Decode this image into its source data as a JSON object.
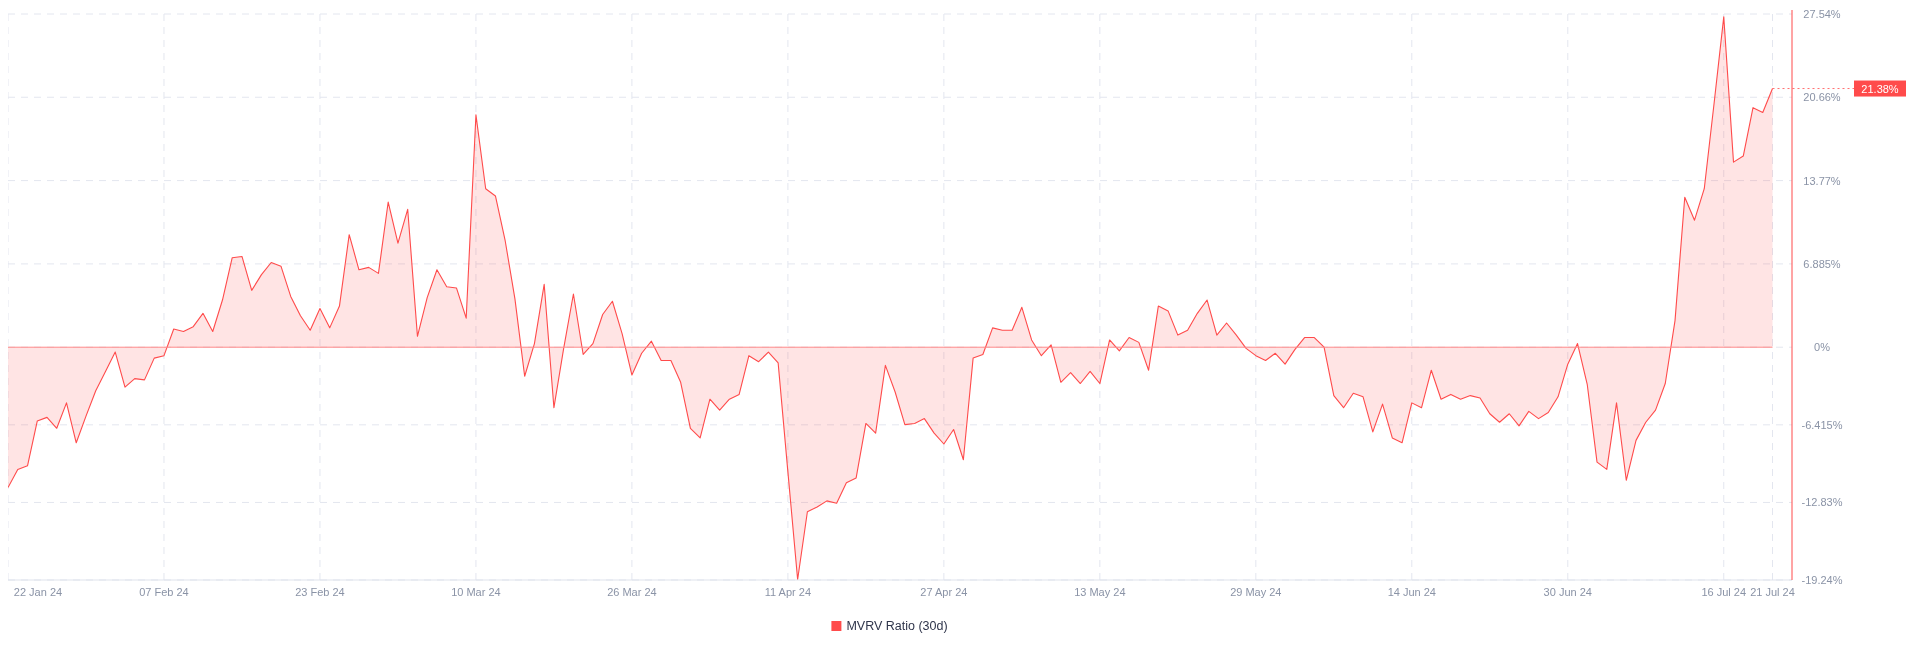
{
  "chart_data": {
    "type": "area",
    "x": [
      "2024-01-22",
      "2024-01-23",
      "2024-01-24",
      "2024-01-25",
      "2024-01-26",
      "2024-01-27",
      "2024-01-28",
      "2024-01-29",
      "2024-01-30",
      "2024-01-31",
      "2024-02-01",
      "2024-02-02",
      "2024-02-03",
      "2024-02-04",
      "2024-02-05",
      "2024-02-06",
      "2024-02-07",
      "2024-02-08",
      "2024-02-09",
      "2024-02-10",
      "2024-02-11",
      "2024-02-12",
      "2024-02-13",
      "2024-02-14",
      "2024-02-15",
      "2024-02-16",
      "2024-02-17",
      "2024-02-18",
      "2024-02-19",
      "2024-02-20",
      "2024-02-21",
      "2024-02-22",
      "2024-02-23",
      "2024-02-24",
      "2024-02-25",
      "2024-02-26",
      "2024-02-27",
      "2024-02-28",
      "2024-02-29",
      "2024-03-01",
      "2024-03-02",
      "2024-03-03",
      "2024-03-04",
      "2024-03-05",
      "2024-03-06",
      "2024-03-07",
      "2024-03-08",
      "2024-03-09",
      "2024-03-10",
      "2024-03-11",
      "2024-03-12",
      "2024-03-13",
      "2024-03-14",
      "2024-03-15",
      "2024-03-16",
      "2024-03-17",
      "2024-03-18",
      "2024-03-19",
      "2024-03-20",
      "2024-03-21",
      "2024-03-22",
      "2024-03-23",
      "2024-03-24",
      "2024-03-25",
      "2024-03-26",
      "2024-03-27",
      "2024-03-28",
      "2024-03-29",
      "2024-03-30",
      "2024-03-31",
      "2024-04-01",
      "2024-04-02",
      "2024-04-03",
      "2024-04-04",
      "2024-04-05",
      "2024-04-06",
      "2024-04-07",
      "2024-04-08",
      "2024-04-09",
      "2024-04-10",
      "2024-04-11",
      "2024-04-12",
      "2024-04-13",
      "2024-04-14",
      "2024-04-15",
      "2024-04-16",
      "2024-04-17",
      "2024-04-18",
      "2024-04-19",
      "2024-04-20",
      "2024-04-21",
      "2024-04-22",
      "2024-04-23",
      "2024-04-24",
      "2024-04-25",
      "2024-04-26",
      "2024-04-27",
      "2024-04-28",
      "2024-04-29",
      "2024-04-30",
      "2024-05-01",
      "2024-05-02",
      "2024-05-03",
      "2024-05-04",
      "2024-05-05",
      "2024-05-06",
      "2024-05-07",
      "2024-05-08",
      "2024-05-09",
      "2024-05-10",
      "2024-05-11",
      "2024-05-12",
      "2024-05-13",
      "2024-05-14",
      "2024-05-15",
      "2024-05-16",
      "2024-05-17",
      "2024-05-18",
      "2024-05-19",
      "2024-05-20",
      "2024-05-21",
      "2024-05-22",
      "2024-05-23",
      "2024-05-24",
      "2024-05-25",
      "2024-05-26",
      "2024-05-27",
      "2024-05-28",
      "2024-05-29",
      "2024-05-30",
      "2024-05-31",
      "2024-06-01",
      "2024-06-02",
      "2024-06-03",
      "2024-06-04",
      "2024-06-05",
      "2024-06-06",
      "2024-06-07",
      "2024-06-08",
      "2024-06-09",
      "2024-06-10",
      "2024-06-11",
      "2024-06-12",
      "2024-06-13",
      "2024-06-14",
      "2024-06-15",
      "2024-06-16",
      "2024-06-17",
      "2024-06-18",
      "2024-06-19",
      "2024-06-20",
      "2024-06-21",
      "2024-06-22",
      "2024-06-23",
      "2024-06-24",
      "2024-06-25",
      "2024-06-26",
      "2024-06-27",
      "2024-06-28",
      "2024-06-29",
      "2024-06-30",
      "2024-07-01",
      "2024-07-02",
      "2024-07-03",
      "2024-07-04",
      "2024-07-05",
      "2024-07-06",
      "2024-07-07",
      "2024-07-08",
      "2024-07-09",
      "2024-07-10",
      "2024-07-11",
      "2024-07-12",
      "2024-07-13",
      "2024-07-14",
      "2024-07-15",
      "2024-07-16",
      "2024-07-17",
      "2024-07-18",
      "2024-07-19",
      "2024-07-20",
      "2024-07-21"
    ],
    "series": [
      {
        "name": "MVRV Ratio (30d)",
        "color": "#ff4b4b",
        "values": [
          -11.6,
          -10.1,
          -9.8,
          -6.1,
          -5.8,
          -6.7,
          -4.6,
          -7.9,
          -5.7,
          -3.6,
          -2.0,
          -0.4,
          -3.3,
          -2.6,
          -2.7,
          -0.9,
          -0.7,
          1.5,
          1.3,
          1.7,
          2.8,
          1.3,
          3.9,
          7.4,
          7.5,
          4.7,
          6.0,
          7.0,
          6.7,
          4.2,
          2.6,
          1.4,
          3.2,
          1.6,
          3.4,
          9.3,
          6.4,
          6.6,
          6.1,
          12.0,
          8.6,
          11.4,
          0.9,
          4.1,
          6.4,
          5.0,
          4.9,
          2.4,
          19.2,
          13.1,
          12.5,
          8.8,
          4.0,
          -2.4,
          0.3,
          5.2,
          -5.0,
          -0.1,
          4.4,
          -0.6,
          0.3,
          2.7,
          3.8,
          1.1,
          -2.3,
          -0.5,
          0.5,
          -1.1,
          -1.1,
          -2.9,
          -6.7,
          -7.5,
          -4.3,
          -5.2,
          -4.3,
          -3.9,
          -0.7,
          -1.2,
          -0.4,
          -1.3,
          -10.3,
          -19.2,
          -13.6,
          -13.2,
          -12.7,
          -12.9,
          -11.2,
          -10.8,
          -6.3,
          -7.1,
          -1.5,
          -3.7,
          -6.4,
          -6.3,
          -5.9,
          -7.1,
          -8.0,
          -6.8,
          -9.3,
          -0.9,
          -0.6,
          1.6,
          1.4,
          1.4,
          3.3,
          0.6,
          -0.7,
          0.2,
          -2.9,
          -2.1,
          -3.0,
          -2.0,
          -3.0,
          0.6,
          -0.3,
          0.8,
          0.4,
          -1.9,
          3.4,
          3.0,
          1.0,
          1.4,
          2.8,
          3.9,
          1.0,
          2.0,
          1.0,
          -0.1,
          -0.7,
          -1.1,
          -0.5,
          -1.4,
          -0.2,
          0.8,
          0.8,
          0.0,
          -4.0,
          -5.0,
          -3.8,
          -4.1,
          -7.0,
          -4.7,
          -7.5,
          -7.9,
          -4.6,
          -5.0,
          -1.9,
          -4.3,
          -3.9,
          -4.3,
          -4.0,
          -4.2,
          -5.5,
          -6.2,
          -5.5,
          -6.5,
          -5.3,
          -5.9,
          -5.4,
          -4.1,
          -1.4,
          0.3,
          -3.1,
          -9.5,
          -10.1,
          -4.6,
          -11.0,
          -7.7,
          -6.2,
          -5.2,
          -3.0,
          2.2,
          12.4,
          10.5,
          13.1,
          20.1,
          27.3,
          15.3,
          15.8,
          19.8,
          19.4,
          21.38
        ]
      }
    ],
    "xlim": [
      "2024-01-22",
      "2024-07-23"
    ],
    "xticks": [
      {
        "value": "2024-01-22",
        "label": "22 Jan 24"
      },
      {
        "value": "2024-02-07",
        "label": "07 Feb 24"
      },
      {
        "value": "2024-02-23",
        "label": "23 Feb 24"
      },
      {
        "value": "2024-03-10",
        "label": "10 Mar 24"
      },
      {
        "value": "2024-03-26",
        "label": "26 Mar 24"
      },
      {
        "value": "2024-04-11",
        "label": "11 Apr 24"
      },
      {
        "value": "2024-04-27",
        "label": "27 Apr 24"
      },
      {
        "value": "2024-05-13",
        "label": "13 May 24"
      },
      {
        "value": "2024-05-29",
        "label": "29 May 24"
      },
      {
        "value": "2024-06-14",
        "label": "14 Jun 24"
      },
      {
        "value": "2024-06-30",
        "label": "30 Jun 24"
      },
      {
        "value": "2024-07-16",
        "label": "16 Jul 24"
      },
      {
        "value": "2024-07-21",
        "label": "21 Jul 24"
      }
    ],
    "ylim": [
      -19.24,
      27.54
    ],
    "yticks": [
      {
        "value": 27.54,
        "label": "27.54%"
      },
      {
        "value": 20.66,
        "label": "20.66%"
      },
      {
        "value": 13.77,
        "label": "13.77%"
      },
      {
        "value": 6.885,
        "label": "6.885%"
      },
      {
        "value": 0,
        "label": "0%"
      },
      {
        "value": -6.415,
        "label": "-6.415%"
      },
      {
        "value": -12.83,
        "label": "-12.83%"
      },
      {
        "value": -19.24,
        "label": "-19.24%"
      }
    ],
    "ref_lines": [
      {
        "axis": "y",
        "value": 0,
        "color": "#ff8a8a"
      }
    ],
    "annotations": [
      {
        "text": "21.38%",
        "x": "2024-07-21",
        "y": 21.38
      }
    ],
    "grid": true,
    "legend": "bottom"
  }
}
